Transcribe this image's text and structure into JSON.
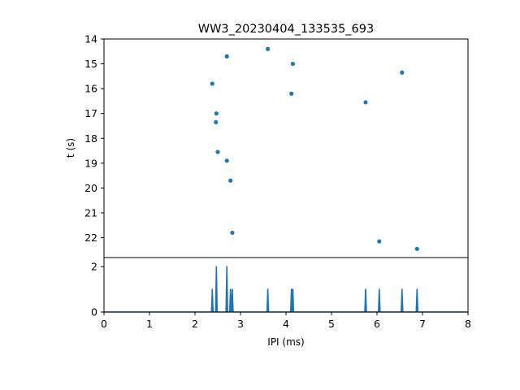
{
  "chart_data": [
    {
      "type": "scatter",
      "title": "WW3_20230404_133535_693",
      "xlabel": "",
      "ylabel": "t (s)",
      "xlim": [
        0,
        8
      ],
      "ylim": [
        22.8,
        14
      ],
      "y_inverted": true,
      "yticks": [
        "14",
        "15",
        "16",
        "17",
        "18",
        "19",
        "20",
        "21",
        "22"
      ],
      "grid": false,
      "color": "#1f77b4",
      "points": [
        {
          "x": 2.7,
          "y": 14.7
        },
        {
          "x": 3.6,
          "y": 14.4
        },
        {
          "x": 4.15,
          "y": 15.0
        },
        {
          "x": 6.55,
          "y": 15.35
        },
        {
          "x": 2.38,
          "y": 15.8
        },
        {
          "x": 4.12,
          "y": 16.2
        },
        {
          "x": 5.75,
          "y": 16.55
        },
        {
          "x": 2.47,
          "y": 17.0
        },
        {
          "x": 2.46,
          "y": 17.35
        },
        {
          "x": 2.5,
          "y": 18.55
        },
        {
          "x": 2.7,
          "y": 18.9
        },
        {
          "x": 2.78,
          "y": 19.7
        },
        {
          "x": 2.82,
          "y": 21.8
        },
        {
          "x": 6.05,
          "y": 22.15
        },
        {
          "x": 6.88,
          "y": 22.45
        }
      ]
    },
    {
      "type": "line",
      "title": "",
      "xlabel": "IPI (ms)",
      "ylabel": "",
      "xlim": [
        0,
        8
      ],
      "ylim": [
        0,
        2.4
      ],
      "xticks": [
        "0",
        "1",
        "2",
        "3",
        "4",
        "5",
        "6",
        "7",
        "8"
      ],
      "yticks": [
        "0",
        "2"
      ],
      "grid": false,
      "color": "#1f77b4",
      "spikes": [
        {
          "x": 2.38,
          "y": 1
        },
        {
          "x": 2.47,
          "y": 2
        },
        {
          "x": 2.7,
          "y": 2
        },
        {
          "x": 2.78,
          "y": 1
        },
        {
          "x": 2.82,
          "y": 1
        },
        {
          "x": 3.6,
          "y": 1
        },
        {
          "x": 4.12,
          "y": 1
        },
        {
          "x": 4.15,
          "y": 1
        },
        {
          "x": 5.75,
          "y": 1
        },
        {
          "x": 6.05,
          "y": 1
        },
        {
          "x": 6.55,
          "y": 1
        },
        {
          "x": 6.88,
          "y": 1
        }
      ]
    }
  ]
}
